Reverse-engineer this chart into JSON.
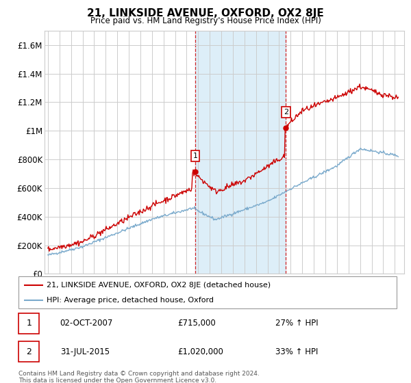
{
  "title": "21, LINKSIDE AVENUE, OXFORD, OX2 8JE",
  "subtitle": "Price paid vs. HM Land Registry's House Price Index (HPI)",
  "ylim": [
    0,
    1700000
  ],
  "yticks": [
    0,
    200000,
    400000,
    600000,
    800000,
    1000000,
    1200000,
    1400000,
    1600000
  ],
  "ytick_labels": [
    "£0",
    "£200K",
    "£400K",
    "£600K",
    "£800K",
    "£1M",
    "£1.2M",
    "£1.4M",
    "£1.6M"
  ],
  "sale1_year": 2007.75,
  "sale1_price": 715000,
  "sale1_label": "1",
  "sale1_date": "02-OCT-2007",
  "sale1_hpi": "27% ↑ HPI",
  "sale2_year": 2015.58,
  "sale2_price": 1020000,
  "sale2_label": "2",
  "sale2_date": "31-JUL-2015",
  "sale2_hpi": "33% ↑ HPI",
  "legend_line1": "21, LINKSIDE AVENUE, OXFORD, OX2 8JE (detached house)",
  "legend_line2": "HPI: Average price, detached house, Oxford",
  "footnote": "Contains HM Land Registry data © Crown copyright and database right 2024.\nThis data is licensed under the Open Government Licence v3.0.",
  "sale_color": "#cc0000",
  "hpi_color": "#7aaacc",
  "grid_color": "#cccccc",
  "shade_color": "#ddeef8"
}
